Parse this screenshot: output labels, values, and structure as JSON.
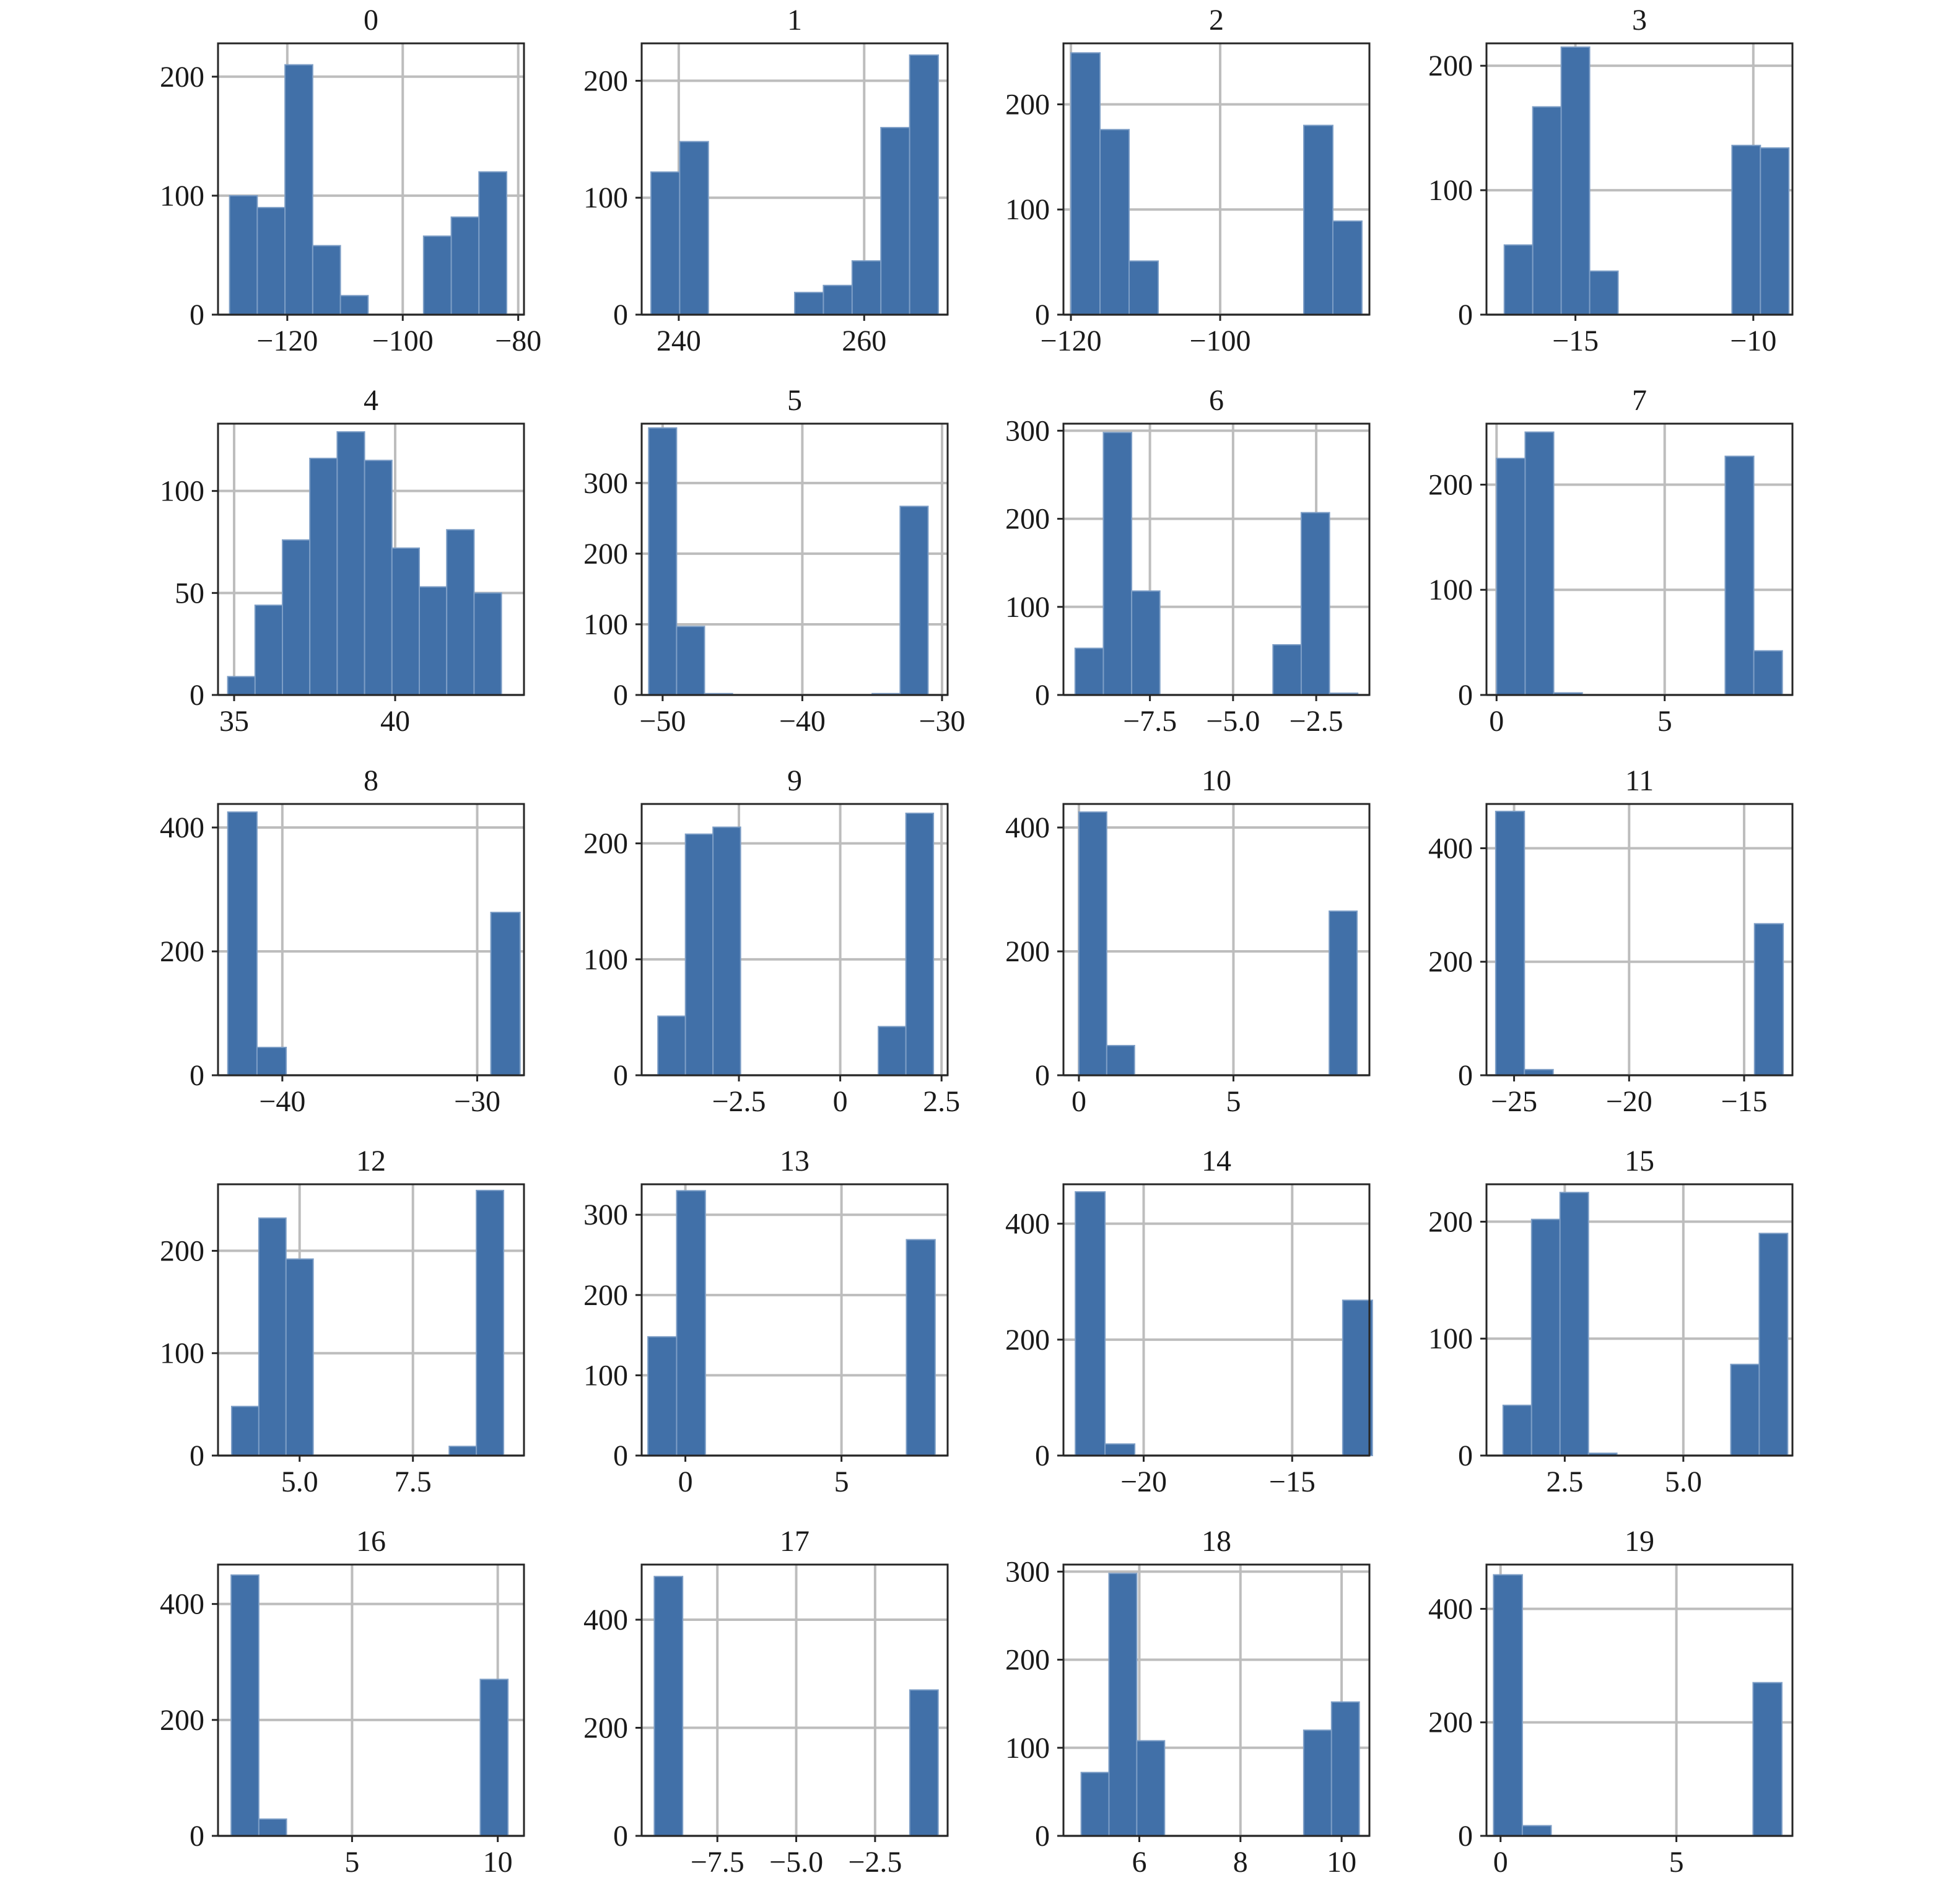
{
  "chart_data": [
    {
      "type": "bar",
      "title": "0",
      "xlim": [
        -132,
        -79
      ],
      "ylim": [
        0,
        228
      ],
      "x_ticks": [
        {
          "v": -120,
          "l": "−120"
        },
        {
          "v": -100,
          "l": "−100"
        },
        {
          "v": -80,
          "l": "−80"
        }
      ],
      "y_ticks": [
        {
          "v": 0,
          "l": "0"
        },
        {
          "v": 100,
          "l": "100"
        },
        {
          "v": 200,
          "l": "200"
        }
      ],
      "bin_edges": [
        -130.0,
        -125.2,
        -120.4,
        -115.6,
        -110.8,
        -106.0,
        -101.2,
        -96.4,
        -91.6,
        -86.8,
        -82.0
      ],
      "values": [
        100,
        90,
        210,
        58,
        16,
        0,
        0,
        66,
        82,
        120
      ]
    },
    {
      "type": "bar",
      "title": "1",
      "xlim": [
        236,
        269
      ],
      "ylim": [
        0,
        232
      ],
      "x_ticks": [
        {
          "v": 240,
          "l": "240"
        },
        {
          "v": 260,
          "l": "260"
        }
      ],
      "y_ticks": [
        {
          "v": 0,
          "l": "0"
        },
        {
          "v": 100,
          "l": "100"
        },
        {
          "v": 200,
          "l": "200"
        }
      ],
      "bin_edges": [
        237.0,
        240.1,
        243.2,
        246.3,
        249.4,
        252.5,
        255.6,
        258.7,
        261.8,
        264.9,
        268.0
      ],
      "values": [
        122,
        148,
        0,
        0,
        0,
        19,
        25,
        46,
        160,
        222
      ]
    },
    {
      "type": "bar",
      "title": "2",
      "xlim": [
        -121,
        -80
      ],
      "ylim": [
        0,
        258
      ],
      "x_ticks": [
        {
          "v": -120,
          "l": "−120"
        },
        {
          "v": -100,
          "l": "−100"
        }
      ],
      "y_ticks": [
        {
          "v": 0,
          "l": "0"
        },
        {
          "v": 100,
          "l": "100"
        },
        {
          "v": 200,
          "l": "200"
        }
      ],
      "bin_edges": [
        -120.0,
        -116.1,
        -112.2,
        -108.3,
        -104.4,
        -100.5,
        -96.6,
        -92.7,
        -88.8,
        -84.9,
        -81.0
      ],
      "values": [
        249,
        176,
        51,
        0,
        0,
        0,
        0,
        0,
        180,
        89
      ]
    },
    {
      "type": "bar",
      "title": "3",
      "xlim": [
        -17.5,
        -8.9
      ],
      "ylim": [
        0,
        218
      ],
      "x_ticks": [
        {
          "v": -15,
          "l": "−15"
        },
        {
          "v": -10,
          "l": "−10"
        }
      ],
      "y_ticks": [
        {
          "v": 0,
          "l": "0"
        },
        {
          "v": 100,
          "l": "100"
        },
        {
          "v": 200,
          "l": "200"
        }
      ],
      "bin_edges": [
        -17.0,
        -16.2,
        -15.4,
        -14.6,
        -13.8,
        -13.0,
        -12.2,
        -11.4,
        -10.6,
        -9.8,
        -9.0
      ],
      "values": [
        56,
        167,
        215,
        35,
        0,
        0,
        0,
        0,
        136,
        134
      ]
    },
    {
      "type": "bar",
      "title": "4",
      "xlim": [
        34.5,
        44.0
      ],
      "ylim": [
        0,
        133
      ],
      "x_ticks": [
        {
          "v": 35,
          "l": "35"
        },
        {
          "v": 40,
          "l": "40"
        }
      ],
      "y_ticks": [
        {
          "v": 0,
          "l": "0"
        },
        {
          "v": 50,
          "l": "50"
        },
        {
          "v": 100,
          "l": "100"
        }
      ],
      "bin_edges": [
        34.8,
        35.65,
        36.5,
        37.35,
        38.2,
        39.05,
        39.9,
        40.75,
        41.6,
        42.45,
        43.3
      ],
      "values": [
        9,
        44,
        76,
        116,
        129,
        115,
        72,
        53,
        81,
        50
      ]
    },
    {
      "type": "bar",
      "title": "5",
      "xlim": [
        -51.5,
        -29.6
      ],
      "ylim": [
        0,
        384
      ],
      "x_ticks": [
        {
          "v": -50,
          "l": "−50"
        },
        {
          "v": -40,
          "l": "−40"
        },
        {
          "v": -30,
          "l": "−30"
        }
      ],
      "y_ticks": [
        {
          "v": 0,
          "l": "0"
        },
        {
          "v": 100,
          "l": "100"
        },
        {
          "v": 200,
          "l": "200"
        },
        {
          "v": 300,
          "l": "300"
        }
      ],
      "bin_edges": [
        -51.0,
        -49.0,
        -47.0,
        -45.0,
        -43.0,
        -41.0,
        -39.0,
        -37.0,
        -35.0,
        -33.0,
        -31.0
      ],
      "values": [
        378,
        97,
        2,
        0,
        0,
        0,
        0,
        0,
        2,
        267
      ]
    },
    {
      "type": "bar",
      "title": "6",
      "xlim": [
        -10.1,
        -0.9
      ],
      "ylim": [
        0,
        308
      ],
      "x_ticks": [
        {
          "v": -7.5,
          "l": "−7.5"
        },
        {
          "v": -5.0,
          "l": "−5.0"
        },
        {
          "v": -2.5,
          "l": "−2.5"
        }
      ],
      "y_ticks": [
        {
          "v": 0,
          "l": "0"
        },
        {
          "v": 100,
          "l": "100"
        },
        {
          "v": 200,
          "l": "200"
        },
        {
          "v": 300,
          "l": "300"
        }
      ],
      "bin_edges": [
        -9.75,
        -8.9,
        -8.05,
        -7.2,
        -6.35,
        -5.5,
        -4.65,
        -3.8,
        -2.95,
        -2.1,
        -1.25
      ],
      "values": [
        53,
        298,
        118,
        0,
        0,
        0,
        0,
        57,
        207,
        2
      ]
    },
    {
      "type": "bar",
      "title": "7",
      "xlim": [
        -0.3,
        8.8
      ],
      "ylim": [
        0,
        258
      ],
      "x_ticks": [
        {
          "v": 0,
          "l": "0"
        },
        {
          "v": 5,
          "l": "5"
        }
      ],
      "y_ticks": [
        {
          "v": 0,
          "l": "0"
        },
        {
          "v": 100,
          "l": "100"
        },
        {
          "v": 200,
          "l": "200"
        }
      ],
      "bin_edges": [
        0.0,
        0.85,
        1.7,
        2.55,
        3.4,
        4.25,
        5.1,
        5.95,
        6.8,
        7.65,
        8.5
      ],
      "values": [
        225,
        250,
        2,
        0,
        0,
        0,
        0,
        0,
        227,
        42
      ]
    },
    {
      "type": "bar",
      "title": "8",
      "xlim": [
        -43.3,
        -27.6
      ],
      "ylim": [
        0,
        438
      ],
      "x_ticks": [
        {
          "v": -40,
          "l": "−40"
        },
        {
          "v": -30,
          "l": "−30"
        }
      ],
      "y_ticks": [
        {
          "v": 0,
          "l": "0"
        },
        {
          "v": 200,
          "l": "200"
        },
        {
          "v": 400,
          "l": "400"
        }
      ],
      "bin_edges": [
        -42.8,
        -41.3,
        -39.8,
        -38.3,
        -36.8,
        -35.3,
        -33.8,
        -32.3,
        -30.8,
        -29.3,
        -27.8
      ],
      "values": [
        425,
        45,
        0,
        0,
        0,
        0,
        0,
        0,
        0,
        263
      ]
    },
    {
      "type": "bar",
      "title": "9",
      "xlim": [
        -4.9,
        2.65
      ],
      "ylim": [
        0,
        234
      ],
      "x_ticks": [
        {
          "v": -2.5,
          "l": "−2.5"
        },
        {
          "v": 0,
          "l": "0"
        },
        {
          "v": 2.5,
          "l": "2.5"
        }
      ],
      "y_ticks": [
        {
          "v": 0,
          "l": "0"
        },
        {
          "v": 100,
          "l": "100"
        },
        {
          "v": 200,
          "l": "200"
        }
      ],
      "bin_edges": [
        -4.5,
        -3.82,
        -3.14,
        -2.46,
        -1.78,
        -1.1,
        -0.42,
        0.26,
        0.94,
        1.62,
        2.3
      ],
      "values": [
        51,
        208,
        214,
        0,
        0,
        0,
        0,
        0,
        42,
        226
      ]
    },
    {
      "type": "bar",
      "title": "10",
      "xlim": [
        -0.5,
        9.4
      ],
      "ylim": [
        0,
        438
      ],
      "x_ticks": [
        {
          "v": 0,
          "l": "0"
        },
        {
          "v": 5,
          "l": "5"
        }
      ],
      "y_ticks": [
        {
          "v": 0,
          "l": "0"
        },
        {
          "v": 200,
          "l": "200"
        },
        {
          "v": 400,
          "l": "400"
        }
      ],
      "bin_edges": [
        0.0,
        0.9,
        1.8,
        2.7,
        3.6,
        4.5,
        5.4,
        6.3,
        7.2,
        8.1,
        9.0
      ],
      "values": [
        425,
        48,
        0,
        0,
        0,
        0,
        0,
        0,
        0,
        265
      ]
    },
    {
      "type": "bar",
      "title": "11",
      "xlim": [
        -26.2,
        -12.9
      ],
      "ylim": [
        0,
        478
      ],
      "x_ticks": [
        {
          "v": -25,
          "l": "−25"
        },
        {
          "v": -20,
          "l": "−20"
        },
        {
          "v": -15,
          "l": "−15"
        }
      ],
      "y_ticks": [
        {
          "v": 0,
          "l": "0"
        },
        {
          "v": 200,
          "l": "200"
        },
        {
          "v": 400,
          "l": "400"
        }
      ],
      "bin_edges": [
        -25.8,
        -24.55,
        -23.3,
        -22.05,
        -20.8,
        -19.55,
        -18.3,
        -17.05,
        -15.8,
        -14.55,
        -13.3
      ],
      "values": [
        465,
        10,
        0,
        0,
        0,
        0,
        0,
        0,
        0,
        267
      ]
    },
    {
      "type": "bar",
      "title": "12",
      "xlim": [
        3.2,
        9.95
      ],
      "ylim": [
        0,
        265
      ],
      "x_ticks": [
        {
          "v": 5.0,
          "l": "5.0"
        },
        {
          "v": 7.5,
          "l": "7.5"
        }
      ],
      "y_ticks": [
        {
          "v": 0,
          "l": "0"
        },
        {
          "v": 100,
          "l": "100"
        },
        {
          "v": 200,
          "l": "200"
        }
      ],
      "bin_edges": [
        3.5,
        4.1,
        4.7,
        5.3,
        5.9,
        6.5,
        7.1,
        7.7,
        8.3,
        8.9,
        9.5
      ],
      "values": [
        48,
        232,
        192,
        0,
        0,
        0,
        0,
        0,
        9,
        259
      ]
    },
    {
      "type": "bar",
      "title": "13",
      "xlim": [
        -1.4,
        8.4
      ],
      "ylim": [
        0,
        338
      ],
      "x_ticks": [
        {
          "v": 0,
          "l": "0"
        },
        {
          "v": 5,
          "l": "5"
        }
      ],
      "y_ticks": [
        {
          "v": 0,
          "l": "0"
        },
        {
          "v": 100,
          "l": "100"
        },
        {
          "v": 200,
          "l": "200"
        },
        {
          "v": 300,
          "l": "300"
        }
      ],
      "bin_edges": [
        -1.2,
        -0.28,
        0.64,
        1.56,
        2.48,
        3.4,
        4.32,
        5.24,
        6.16,
        7.08,
        8.0
      ],
      "values": [
        148,
        330,
        0,
        0,
        0,
        0,
        0,
        0,
        0,
        269
      ]
    },
    {
      "type": "bar",
      "title": "14",
      "xlim": [
        -22.7,
        -12.4
      ],
      "ylim": [
        0,
        468
      ],
      "x_ticks": [
        {
          "v": -20,
          "l": "−20"
        },
        {
          "v": -15,
          "l": "−15"
        }
      ],
      "y_ticks": [
        {
          "v": 0,
          "l": "0"
        },
        {
          "v": 200,
          "l": "200"
        },
        {
          "v": 400,
          "l": "400"
        }
      ],
      "bin_edges": [
        -22.3,
        -21.3,
        -20.3,
        -19.3,
        -18.3,
        -17.3,
        -16.3,
        -15.3,
        -14.3,
        -13.3,
        -12.3
      ],
      "values": [
        455,
        20,
        0,
        0,
        0,
        0,
        0,
        0,
        0,
        268
      ]
    },
    {
      "type": "bar",
      "title": "15",
      "xlim": [
        0.85,
        7.3
      ],
      "ylim": [
        0,
        232
      ],
      "x_ticks": [
        {
          "v": 2.5,
          "l": "2.5"
        },
        {
          "v": 5.0,
          "l": "5.0"
        }
      ],
      "y_ticks": [
        {
          "v": 0,
          "l": "0"
        },
        {
          "v": 100,
          "l": "100"
        },
        {
          "v": 200,
          "l": "200"
        }
      ],
      "bin_edges": [
        1.2,
        1.8,
        2.4,
        3.0,
        3.6,
        4.2,
        4.8,
        5.4,
        6.0,
        6.6,
        7.2
      ],
      "values": [
        43,
        202,
        225,
        2,
        0,
        0,
        0,
        0,
        78,
        190
      ]
    },
    {
      "type": "bar",
      "title": "16",
      "xlim": [
        0.4,
        10.9
      ],
      "ylim": [
        0,
        468
      ],
      "x_ticks": [
        {
          "v": 5,
          "l": "5"
        },
        {
          "v": 10,
          "l": "10"
        }
      ],
      "y_ticks": [
        {
          "v": 0,
          "l": "0"
        },
        {
          "v": 200,
          "l": "200"
        },
        {
          "v": 400,
          "l": "400"
        }
      ],
      "bin_edges": [
        0.85,
        1.8,
        2.75,
        3.7,
        4.65,
        5.6,
        6.55,
        7.5,
        8.45,
        9.4,
        10.35
      ],
      "values": [
        450,
        29,
        0,
        0,
        0,
        0,
        0,
        0,
        0,
        270
      ]
    },
    {
      "type": "bar",
      "title": "17",
      "xlim": [
        -9.9,
        -0.2
      ],
      "ylim": [
        0,
        502
      ],
      "x_ticks": [
        {
          "v": -7.5,
          "l": "−7.5"
        },
        {
          "v": -5.0,
          "l": "−5.0"
        },
        {
          "v": -2.5,
          "l": "−2.5"
        }
      ],
      "y_ticks": [
        {
          "v": 0,
          "l": "0"
        },
        {
          "v": 200,
          "l": "200"
        },
        {
          "v": 400,
          "l": "400"
        }
      ],
      "bin_edges": [
        -9.5,
        -8.6,
        -7.7,
        -6.8,
        -5.9,
        -5.0,
        -4.1,
        -3.2,
        -2.3,
        -1.4,
        -0.5
      ],
      "values": [
        480,
        0,
        0,
        0,
        0,
        0,
        0,
        0,
        0,
        270
      ]
    },
    {
      "type": "bar",
      "title": "18",
      "xlim": [
        4.5,
        10.55
      ],
      "ylim": [
        0,
        308
      ],
      "x_ticks": [
        {
          "v": 6,
          "l": "6"
        },
        {
          "v": 8,
          "l": "8"
        },
        {
          "v": 10,
          "l": "10"
        }
      ],
      "y_ticks": [
        {
          "v": 0,
          "l": "0"
        },
        {
          "v": 100,
          "l": "100"
        },
        {
          "v": 200,
          "l": "200"
        },
        {
          "v": 300,
          "l": "300"
        }
      ],
      "bin_edges": [
        4.85,
        5.4,
        5.95,
        6.5,
        7.05,
        7.6,
        8.15,
        8.7,
        9.25,
        9.8,
        10.35
      ],
      "values": [
        72,
        298,
        108,
        0,
        0,
        0,
        0,
        0,
        120,
        152
      ]
    },
    {
      "type": "bar",
      "title": "19",
      "xlim": [
        -0.4,
        8.3
      ],
      "ylim": [
        0,
        478
      ],
      "x_ticks": [
        {
          "v": 0,
          "l": "0"
        },
        {
          "v": 5,
          "l": "5"
        }
      ],
      "y_ticks": [
        {
          "v": 0,
          "l": "0"
        },
        {
          "v": 200,
          "l": "200"
        },
        {
          "v": 400,
          "l": "400"
        }
      ],
      "bin_edges": [
        -0.2,
        0.62,
        1.44,
        2.26,
        3.08,
        3.9,
        4.72,
        5.54,
        6.36,
        7.18,
        8.0
      ],
      "values": [
        460,
        18,
        0,
        0,
        0,
        0,
        0,
        0,
        0,
        270
      ]
    }
  ]
}
